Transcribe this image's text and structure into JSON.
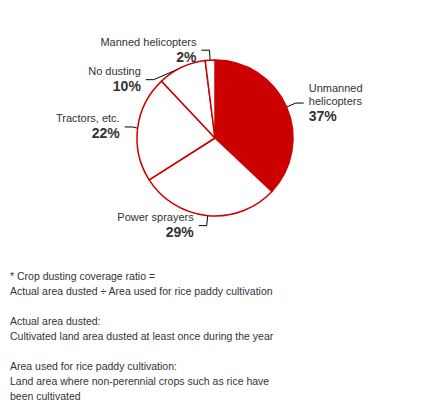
{
  "chart_data": {
    "type": "pie",
    "categories": [
      "Unmanned\nhelicopters",
      "Power sprayers",
      "Tractors, etc.",
      "No dusting",
      "Manned helicopters"
    ],
    "values": [
      37,
      29,
      22,
      10,
      2
    ],
    "value_labels": [
      "37%",
      "29%",
      "22%",
      "10%",
      "2%"
    ],
    "colors": [
      "#cc0000",
      "#ffffff",
      "#ffffff",
      "#ffffff",
      "#ffffff"
    ],
    "data_labels": true,
    "legend": false,
    "annotations": [
      "* Crop dusting coverage ratio =\nActual area dusted ÷ Area used for rice paddy cultivation",
      "Actual area dusted:\nCultivated land area dusted at least once during the year",
      "Area used for rice paddy cultivation:\nLand area where non-perennial crops such as rice have\nbeen cultivated"
    ]
  }
}
